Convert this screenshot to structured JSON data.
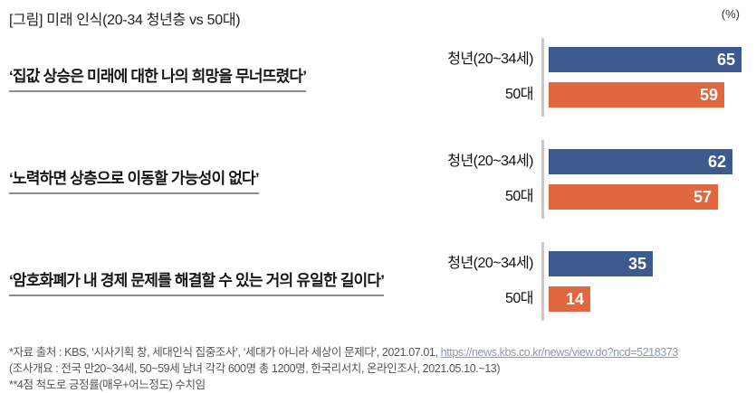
{
  "header": {
    "title": "[그림] 미래 인식(20-34 청년층 vs 50대)",
    "unit_label": "(%)"
  },
  "chart_data": {
    "type": "bar",
    "orientation": "horizontal",
    "unit": "%",
    "xlim": [
      0,
      70
    ],
    "grid": false,
    "legend_position": "none",
    "series_labels": [
      "청년(20~34세)",
      "50대"
    ],
    "colors": {
      "youth": "#3D5A8E",
      "fifties": "#E0673F",
      "axis_line": "#C8C8C8"
    },
    "groups": [
      {
        "statement": "‘집값 상승은 미래에 대한 나의 희망을 무너뜨렸다’",
        "rows": [
          {
            "label": "청년(20~34세)",
            "value": 65
          },
          {
            "label": "50대",
            "value": 59
          }
        ]
      },
      {
        "statement": "‘노력하면 상층으로 이동할 가능성이 없다’",
        "rows": [
          {
            "label": "청년(20~34세)",
            "value": 62
          },
          {
            "label": "50대",
            "value": 57
          }
        ]
      },
      {
        "statement": "‘암호화폐가 내 경제 문제를 해결할 수 있는 거의 유일한 길이다’",
        "rows": [
          {
            "label": "청년(20~34세)",
            "value": 35
          },
          {
            "label": "50대",
            "value": 14
          }
        ]
      }
    ]
  },
  "footer": {
    "line1_prefix": "*자료 출처 : KBS, ‘시사기획 창, 세대인식 집중조사’, ‘세대가 아니라 세상이 문제다’, 2021.07.01, ",
    "line1_url": "https://news.kbs.co.kr/news/view.do?ncd=5218373",
    "line2": "(조사개요 : 전국 만20~34세, 50~59세 남녀 각각 600명 총 1200명, 한국리서치, 온라인조사, 2021.05.10.~13)",
    "line3": "**4점 척도로 긍정률(매우+어느정도) 수치임"
  }
}
